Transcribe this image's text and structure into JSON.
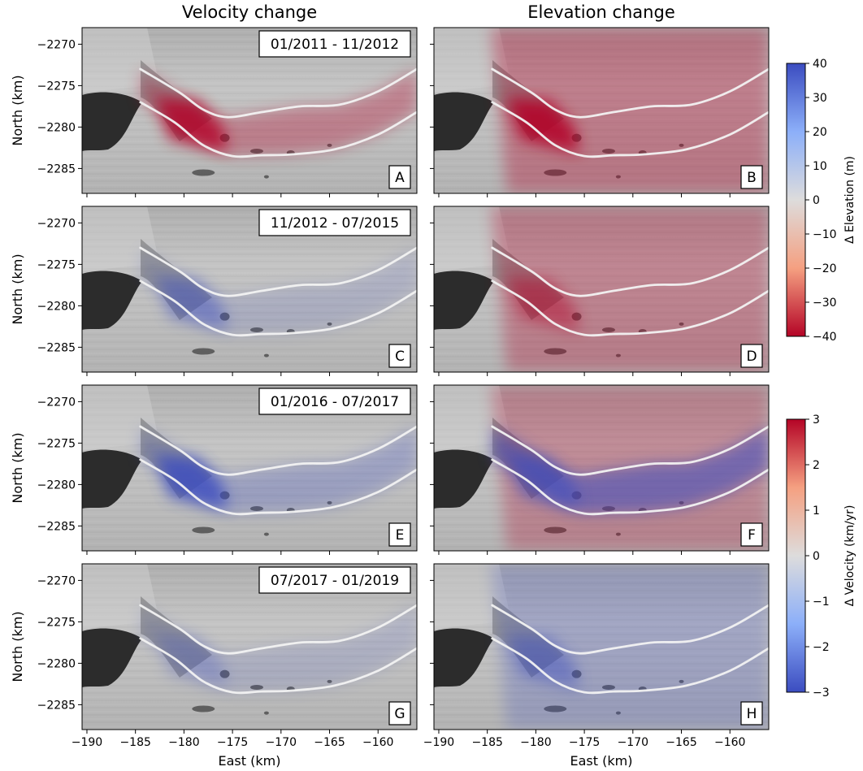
{
  "figure": {
    "col_titles": [
      "Velocity change",
      "Elevation change"
    ]
  },
  "chart_data": {
    "type": "heatmap",
    "xlabel": "East (km)",
    "ylabel": "North (km)",
    "xlim": [
      -190.5,
      -156
    ],
    "ylim": [
      -2288,
      -2268
    ],
    "xticks": [
      -190,
      -185,
      -180,
      -175,
      -170,
      -165,
      -160
    ],
    "yticks": [
      -2270,
      -2275,
      -2280,
      -2285
    ],
    "xtick_labels": [
      "−190",
      "−185",
      "−180",
      "−175",
      "−170",
      "−165",
      "−160"
    ],
    "ytick_labels": [
      "−2270",
      "−2275",
      "−2280",
      "−2285"
    ],
    "panels": [
      {
        "letter": "A",
        "column": "velocity",
        "period": "01/2011 - 11/2012",
        "change": "increase",
        "magnitude": 0.55,
        "near_front": "strong"
      },
      {
        "letter": "B",
        "column": "elevation",
        "period": "",
        "change": "decrease",
        "magnitude": 0.5,
        "near_front": "strong"
      },
      {
        "letter": "C",
        "column": "velocity",
        "period": "11/2012 - 07/2015",
        "change": "decrease",
        "magnitude": 0.25,
        "near_front": "moderate"
      },
      {
        "letter": "D",
        "column": "elevation",
        "period": "",
        "change": "decrease",
        "magnitude": 0.45,
        "near_front": "moderate"
      },
      {
        "letter": "E",
        "column": "velocity",
        "period": "01/2016 - 07/2017",
        "change": "decrease",
        "magnitude": 0.45,
        "near_front": "strong"
      },
      {
        "letter": "F",
        "column": "elevation",
        "period": "",
        "change": "mixed",
        "magnitude": 0.4,
        "near_front": "increase"
      },
      {
        "letter": "G",
        "column": "velocity",
        "period": "07/2017 - 01/2019",
        "change": "decrease",
        "magnitude": 0.25,
        "near_front": "weak"
      },
      {
        "letter": "H",
        "column": "elevation",
        "period": "",
        "change": "increase",
        "magnitude": 0.35,
        "near_front": "moderate"
      }
    ],
    "colorbars": [
      {
        "label": "Δ Elevation (m)",
        "range": [
          -40,
          40
        ],
        "ticks": [
          40,
          30,
          20,
          10,
          0,
          -10,
          -20,
          -30,
          -40
        ],
        "tick_labels": [
          "40",
          "30",
          "20",
          "10",
          "0",
          "−10",
          "−20",
          "−30",
          "−40"
        ],
        "colormap": "coolwarm_reversed"
      },
      {
        "label": "Δ Velocity (km/yr)",
        "range": [
          -3,
          3
        ],
        "ticks": [
          3,
          2,
          1,
          0,
          -1,
          -2,
          -3
        ],
        "tick_labels": [
          "3",
          "2",
          "1",
          "0",
          "−1",
          "−2",
          "−3"
        ],
        "colormap": "coolwarm"
      }
    ],
    "glacier_outline": {
      "upper": [
        [
          -184.5,
          -2273
        ],
        [
          -180.5,
          -2275.8
        ],
        [
          -178,
          -2277.9
        ],
        [
          -175.5,
          -2278.8
        ],
        [
          -172,
          -2278.2
        ],
        [
          -168,
          -2277.5
        ],
        [
          -164,
          -2277.3
        ],
        [
          -160,
          -2275.7
        ],
        [
          -156,
          -2273
        ]
      ],
      "lower": [
        [
          -184.5,
          -2277
        ],
        [
          -181,
          -2279.4
        ],
        [
          -178,
          -2282.2
        ],
        [
          -175,
          -2283.5
        ],
        [
          -172,
          -2283.4
        ],
        [
          -169,
          -2283.3
        ],
        [
          -164.5,
          -2282.7
        ],
        [
          -160,
          -2280.9
        ],
        [
          -156,
          -2278.2
        ]
      ]
    },
    "colors": {
      "red": "#b40426",
      "blue": "#3b4cc0",
      "neutral": "#dddcdc",
      "ice_background": "#b4b4b4",
      "rock": "#2c2c2c",
      "outline": "#f2f2f2"
    }
  }
}
